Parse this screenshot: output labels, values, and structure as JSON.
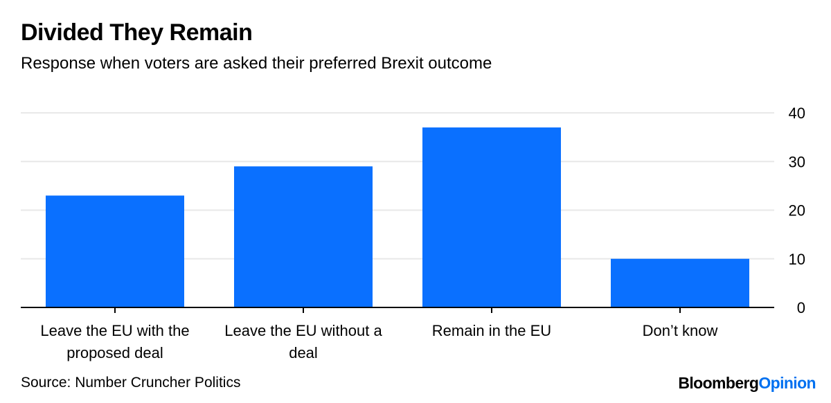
{
  "header": {
    "title": "Divided They Remain",
    "subtitle": "Response when voters are asked their preferred Brexit outcome"
  },
  "footer": {
    "source": "Source: Number Cruncher Politics",
    "brand_part1": "Bloomberg",
    "brand_part2": "Opinion"
  },
  "colors": {
    "bar": "#0a70ff",
    "grid": "#e8e8e8",
    "axis": "#000000",
    "brand_accent": "#0070f0"
  },
  "chart_data": {
    "type": "bar",
    "title": "Divided They Remain",
    "subtitle": "Response when voters are asked their preferred Brexit outcome",
    "categories": [
      [
        "Leave the EU with the",
        "proposed deal"
      ],
      [
        "Leave the EU without a",
        "deal"
      ],
      [
        "Remain in the EU"
      ],
      [
        "Don’t know"
      ]
    ],
    "values": [
      23,
      29,
      37,
      10
    ],
    "ylim": [
      0,
      40
    ],
    "yticks": [
      0,
      10,
      20,
      30,
      40
    ],
    "ytick_labels": [
      "0",
      "10",
      "20",
      "30",
      "40"
    ],
    "xlabel": "",
    "ylabel": "",
    "y_axis_side": "right",
    "grid": true
  }
}
